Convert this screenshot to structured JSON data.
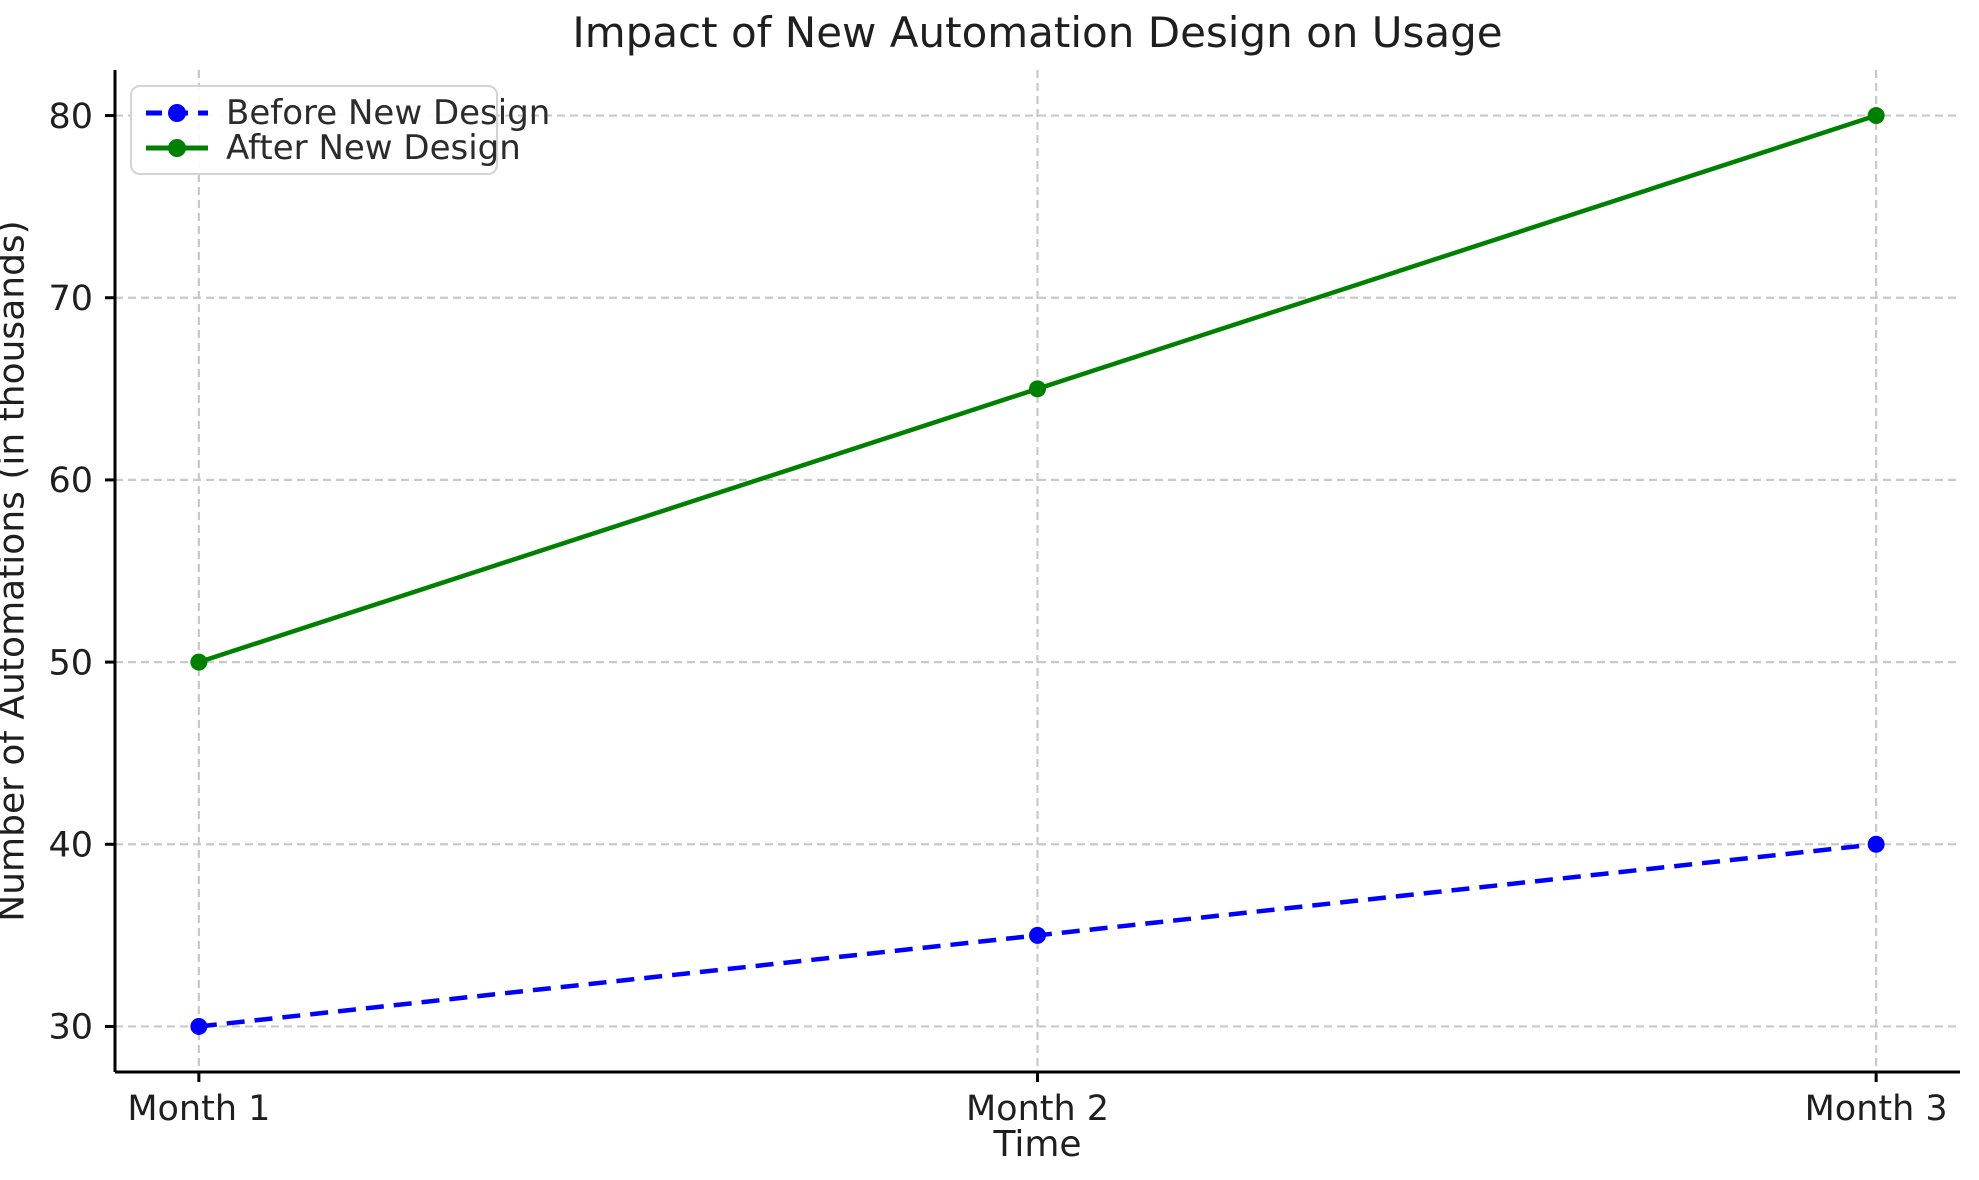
{
  "chart_data": {
    "type": "line",
    "title": "Impact of New Automation Design on Usage",
    "xlabel": "Time",
    "ylabel": "Number of Automations (in thousands)",
    "categories": [
      "Month 1",
      "Month 2",
      "Month 3"
    ],
    "x": [
      1,
      2,
      3
    ],
    "xlim": [
      0.9,
      3.1
    ],
    "ylim": [
      27.5,
      82.5
    ],
    "y_ticks": [
      30,
      40,
      50,
      60,
      70,
      80
    ],
    "grid": true,
    "grid_style": "dashed",
    "legend_position": "upper left",
    "series": [
      {
        "name": "Before New Design",
        "values": [
          30,
          35,
          40
        ],
        "color": "#0000ff",
        "style": "dashed",
        "marker": "circle"
      },
      {
        "name": "After New Design",
        "values": [
          50,
          65,
          80
        ],
        "color": "#008000",
        "style": "solid",
        "marker": "circle"
      }
    ],
    "colors": {
      "grid": "#c9c9c9",
      "axis": "#000000",
      "text": "#1f1f1f",
      "legend_border": "#d4d4d4",
      "background": "#ffffff"
    }
  }
}
